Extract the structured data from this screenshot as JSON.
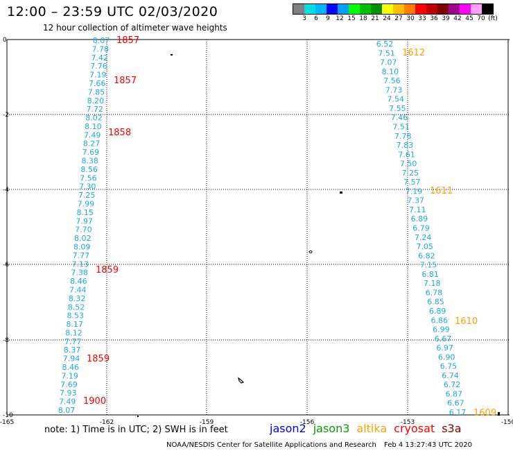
{
  "header": {
    "title": "12:00 – 23:59 UTC 02/03/2020",
    "subtitle": "12 hour collection of altimeter wave heights"
  },
  "colorbar": {
    "colors": [
      "#808080",
      "#00e0e0",
      "#00b4ff",
      "#0000ff",
      "#00a0ff",
      "#00ff00",
      "#00c000",
      "#009000",
      "#ffff00",
      "#ffc000",
      "#ff8000",
      "#ff0000",
      "#c00000",
      "#800000",
      "#a00090",
      "#ff00ff",
      "#ffa0ff",
      "#000000"
    ],
    "labels": [
      "3",
      "6",
      "9",
      "12",
      "15",
      "18",
      "21",
      "24",
      "27",
      "30",
      "33",
      "36",
      "39",
      "42",
      "45",
      "70",
      "(ft)"
    ]
  },
  "map": {
    "x_ticks": [
      "-165",
      "-162",
      "-159",
      "-156",
      "-153",
      "-150"
    ],
    "y_ticks": [
      "0",
      "-2",
      "-4",
      "-6",
      "-8",
      "-10"
    ]
  },
  "tracks": {
    "west": {
      "satellite": "cryosat",
      "color": "#1ca8e0",
      "values": [
        "8.07",
        "7.78",
        "7.42",
        "7.76",
        "7.19",
        "7.66",
        "7.85",
        "8.20",
        "7.72",
        "8.02",
        "8.10",
        "7.49",
        "8.27",
        "7.69",
        "8.38",
        "8.56",
        "7.56",
        "7.30",
        "7.25",
        "7.99",
        "8.15",
        "7.97",
        "7.70",
        "8.02",
        "8.09",
        "7.77",
        "7.13",
        "7.38",
        "8.46",
        "7.44",
        "8.32",
        "8.52",
        "8.53",
        "8.17",
        "8.12",
        "7.77",
        "8.37",
        "7.94",
        "8.46",
        "7.19",
        "7.69",
        "7.93",
        "7.49",
        "8.07"
      ],
      "time_labels": [
        "1857",
        "1857",
        "1858",
        "1859",
        "1859",
        "1900"
      ]
    },
    "east": {
      "satellite": "altika",
      "color": "#1ca8e0",
      "values": [
        "6.52",
        "7.51",
        "7.07",
        "8.10",
        "7.56",
        "7.73",
        "7.54",
        "7.55",
        "7.46",
        "7.51",
        "7.78",
        "7.83",
        "7.61",
        "7.50",
        "7.25",
        "7.57",
        "7.19",
        "7.37",
        "7.11",
        "6.89",
        "6.79",
        "7.24",
        "7.05",
        "6.82",
        "7.15",
        "6.81",
        "7.18",
        "6.78",
        "6.85",
        "6.89",
        "6.86",
        "6.99",
        "6.67",
        "6.97",
        "6.90",
        "6.75",
        "6.74",
        "6.72",
        "6.87",
        "6.67",
        "6.17"
      ],
      "time_labels": [
        "1612",
        "1611",
        "1610",
        "1609"
      ]
    }
  },
  "note": "note:  1) Time is in UTC;  2) SWH is in feet",
  "legend": [
    {
      "name": "jason2",
      "color": "#0000ff"
    },
    {
      "name": "jason3",
      "color": "#00a000"
    },
    {
      "name": "altika",
      "color": "#ffa000"
    },
    {
      "name": "cryosat",
      "color": "#ff0000"
    },
    {
      "name": "s3a",
      "color": "#800000"
    }
  ],
  "footer": {
    "org": "NOAA/NESDIS Center for Satellite Applications and Research",
    "timestamp": "Feb  4 13:27:43 UTC 2020"
  }
}
